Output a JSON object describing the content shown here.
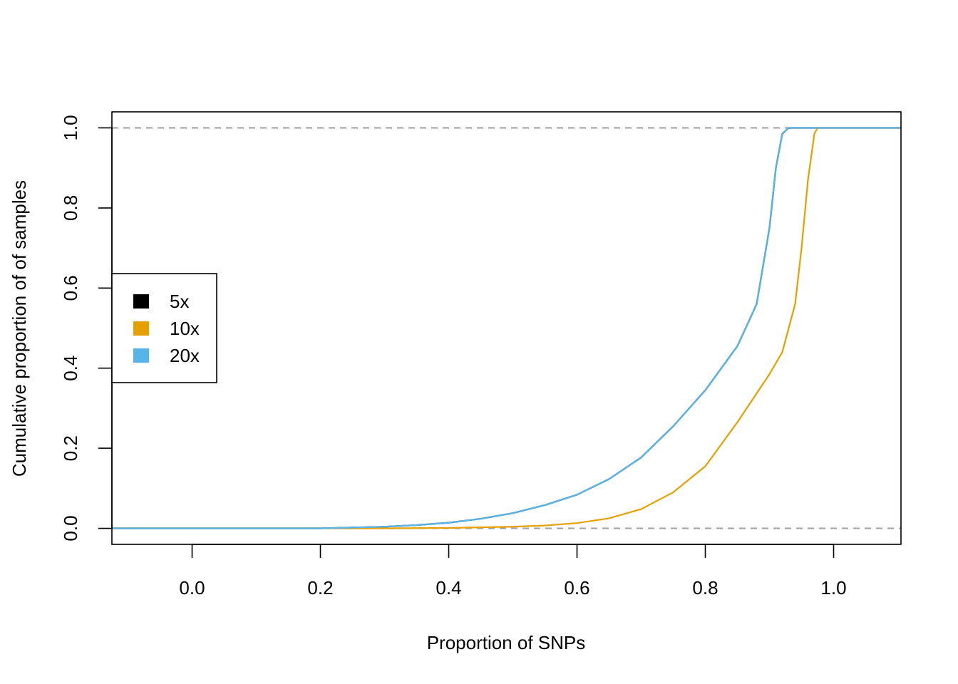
{
  "chart_data": {
    "type": "line",
    "title": "",
    "xlabel": "Proportion of SNPs",
    "ylabel": "Cumulative proportion of of samples",
    "xlim": [
      -0.125,
      1.105
    ],
    "ylim": [
      -0.04,
      1.04
    ],
    "xticks": [
      0.0,
      0.2,
      0.4,
      0.6,
      0.8,
      1.0
    ],
    "xtick_labels": [
      "0.0",
      "0.2",
      "0.4",
      "0.6",
      "0.8",
      "1.0"
    ],
    "yticks": [
      0.0,
      0.2,
      0.4,
      0.6,
      0.8,
      1.0
    ],
    "ytick_labels": [
      "0.0",
      "0.2",
      "0.4",
      "0.6",
      "0.8",
      "1.0"
    ],
    "reference_lines": [
      0.0,
      1.0
    ],
    "grid": false,
    "legend_position": "left",
    "series": [
      {
        "name": "5x",
        "color": "#000000",
        "x": [
          -0.125,
          0.2,
          0.25,
          0.3,
          0.35,
          0.4,
          0.45,
          0.5,
          0.55,
          0.6,
          0.65,
          0.7,
          0.75,
          0.8,
          0.85,
          0.88,
          0.9,
          0.91,
          0.92,
          0.93,
          1.105
        ],
        "y": [
          0.0,
          0.0,
          0.002,
          0.004,
          0.008,
          0.014,
          0.024,
          0.038,
          0.058,
          0.084,
          0.123,
          0.177,
          0.255,
          0.345,
          0.455,
          0.56,
          0.75,
          0.9,
          0.985,
          1.0,
          1.0
        ]
      },
      {
        "name": "10x",
        "color": "#E69F00",
        "x": [
          -0.125,
          0.3,
          0.4,
          0.5,
          0.55,
          0.6,
          0.65,
          0.7,
          0.75,
          0.8,
          0.85,
          0.9,
          0.92,
          0.94,
          0.95,
          0.96,
          0.97,
          0.975,
          1.105
        ],
        "y": [
          0.0,
          0.0,
          0.001,
          0.004,
          0.007,
          0.013,
          0.025,
          0.048,
          0.09,
          0.155,
          0.265,
          0.385,
          0.44,
          0.56,
          0.7,
          0.87,
          0.985,
          1.0,
          1.0
        ]
      },
      {
        "name": "20x",
        "color": "#56B4E9",
        "x": [
          -0.125,
          0.2,
          0.25,
          0.3,
          0.35,
          0.4,
          0.45,
          0.5,
          0.55,
          0.6,
          0.65,
          0.7,
          0.75,
          0.8,
          0.85,
          0.88,
          0.9,
          0.91,
          0.92,
          0.93,
          1.105
        ],
        "y": [
          0.0,
          0.0,
          0.002,
          0.004,
          0.008,
          0.014,
          0.024,
          0.038,
          0.058,
          0.084,
          0.123,
          0.177,
          0.255,
          0.345,
          0.455,
          0.56,
          0.75,
          0.9,
          0.985,
          1.0,
          1.0
        ]
      }
    ]
  }
}
